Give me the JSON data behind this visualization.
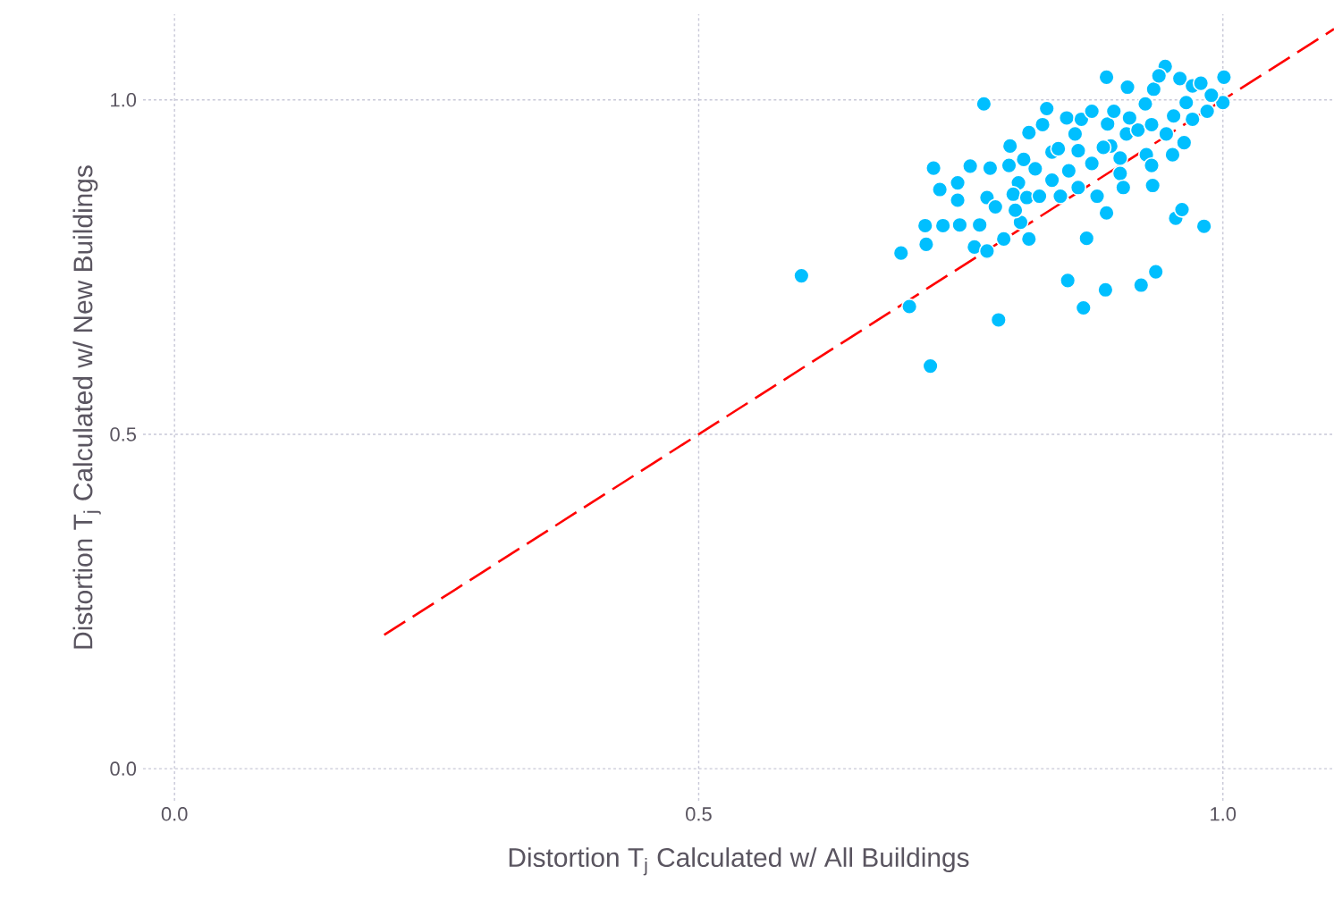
{
  "chart_data": {
    "type": "scatter",
    "xlabel": "Distortion T$_{j}$ Calculated w/ All Buildings",
    "ylabel": "Distortion T$_{j}$ Calculated w/ New Buildings",
    "xlim": [
      -0.03,
      1.106
    ],
    "ylim": [
      -0.048,
      1.128
    ],
    "xticks": [
      {
        "value": 0,
        "label": "0.0"
      },
      0.5,
      {
        "value": 1,
        "label": "1.0"
      }
    ],
    "yticks": [
      {
        "value": 0,
        "label": "0.0"
      },
      0.5,
      {
        "value": 1,
        "label": "1.0"
      }
    ],
    "grid": true,
    "series": [
      {
        "color": "#00bfff",
        "marker": "circle",
        "x": [
          0.598,
          0.701,
          0.721,
          0.786,
          0.852,
          0.867,
          0.888,
          0.922,
          0.936,
          0.955,
          0.961,
          0.982,
          0.693,
          0.717,
          0.716,
          0.733,
          0.749,
          0.768,
          0.763,
          0.775,
          0.791,
          0.815,
          0.87,
          0.889,
          0.807,
          0.802,
          0.772,
          0.889,
          0.909,
          0.945,
          1.001,
          1.0,
          0.724,
          0.73,
          0.747,
          0.747,
          0.759,
          0.778,
          0.775,
          0.783,
          0.797,
          0.796,
          0.805,
          0.8,
          0.813,
          0.821,
          0.815,
          0.828,
          0.832,
          0.837,
          0.837,
          0.845,
          0.843,
          0.853,
          0.862,
          0.851,
          0.865,
          0.859,
          0.862,
          0.875,
          0.875,
          0.88,
          0.89,
          0.893,
          0.902,
          0.905,
          0.896,
          0.908,
          0.919,
          0.926,
          0.927,
          0.932,
          0.933,
          0.934,
          0.932,
          0.939,
          0.946,
          0.952,
          0.953,
          0.959,
          0.965,
          0.963,
          0.971,
          0.971,
          0.979,
          0.985,
          0.989,
          0.902,
          0.886,
          0.911,
          0.825,
          0.81
        ],
        "values": [
          0.737,
          0.691,
          0.602,
          0.671,
          0.73,
          0.689,
          0.716,
          0.723,
          0.743,
          0.823,
          0.836,
          0.811,
          0.771,
          0.784,
          0.812,
          0.812,
          0.813,
          0.813,
          0.78,
          0.774,
          0.792,
          0.792,
          0.793,
          0.831,
          0.817,
          0.835,
          0.994,
          1.034,
          1.019,
          1.05,
          1.034,
          0.996,
          0.898,
          0.866,
          0.876,
          0.85,
          0.901,
          0.898,
          0.854,
          0.84,
          0.931,
          0.902,
          0.876,
          0.859,
          0.854,
          0.897,
          0.951,
          0.963,
          0.987,
          0.922,
          0.88,
          0.856,
          0.927,
          0.894,
          0.869,
          0.973,
          0.971,
          0.949,
          0.924,
          0.983,
          0.905,
          0.856,
          0.964,
          0.931,
          0.89,
          0.869,
          0.983,
          0.949,
          0.955,
          0.994,
          0.918,
          0.902,
          0.872,
          1.016,
          0.963,
          1.036,
          0.949,
          0.918,
          0.976,
          1.032,
          0.996,
          0.936,
          0.971,
          1.021,
          1.025,
          0.983,
          1.007,
          0.913,
          0.929,
          0.973,
          0.856,
          0.911
        ]
      },
      {
        "type": "line",
        "color": "#ff0000",
        "line_style": "dashed",
        "marker": "none",
        "x": [
          0.2,
          1.106
        ],
        "values": [
          0.2,
          1.106
        ]
      }
    ]
  }
}
